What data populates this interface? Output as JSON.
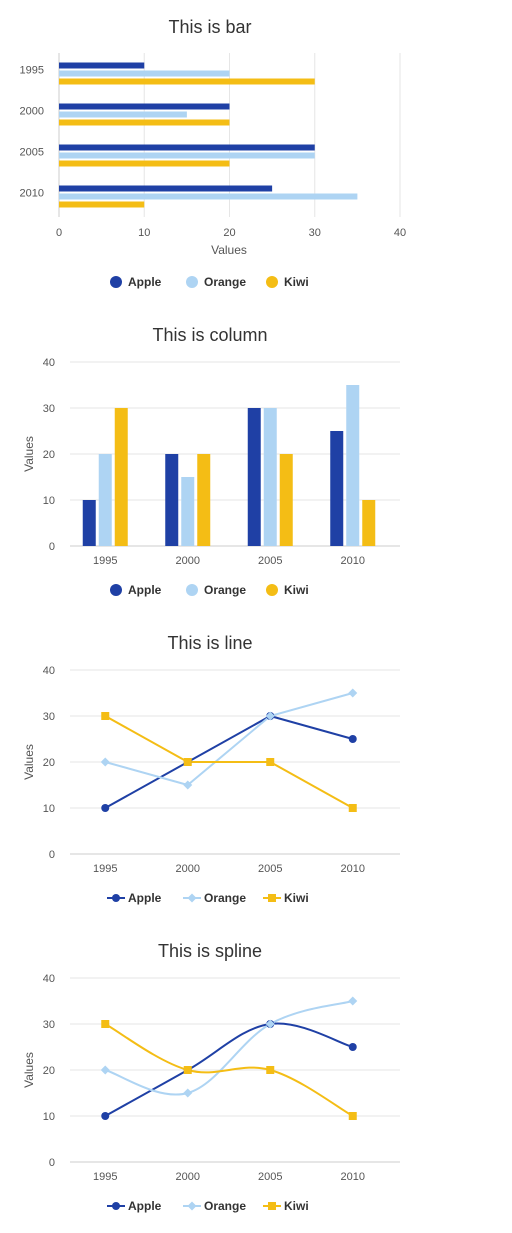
{
  "colors": {
    "Apple": "#1f40a5",
    "Orange": "#aed4f3",
    "Kiwi": "#f4bd15",
    "grid": "#e6e6e6",
    "axis": "#cccccc"
  },
  "chart_data": [
    {
      "type": "bar",
      "title": "This is bar",
      "categories": [
        "1995",
        "2000",
        "2005",
        "2010"
      ],
      "series": [
        {
          "name": "Apple",
          "values": [
            10,
            20,
            30,
            25
          ]
        },
        {
          "name": "Orange",
          "values": [
            20,
            15,
            30,
            35
          ]
        },
        {
          "name": "Kiwi",
          "values": [
            30,
            20,
            20,
            10
          ]
        }
      ],
      "xlabel": "Values",
      "ylabel": "",
      "xlim": [
        0,
        40
      ],
      "ticks": [
        "0",
        "10",
        "20",
        "30",
        "40"
      ],
      "grid": true,
      "legend": "bottom"
    },
    {
      "type": "column",
      "title": "This is column",
      "categories": [
        "1995",
        "2000",
        "2005",
        "2010"
      ],
      "series": [
        {
          "name": "Apple",
          "values": [
            10,
            20,
            30,
            25
          ]
        },
        {
          "name": "Orange",
          "values": [
            20,
            15,
            30,
            35
          ]
        },
        {
          "name": "Kiwi",
          "values": [
            30,
            20,
            20,
            10
          ]
        }
      ],
      "xlabel": "",
      "ylabel": "Values",
      "ylim": [
        0,
        40
      ],
      "ticks": [
        "0",
        "10",
        "20",
        "30",
        "40"
      ],
      "grid": true,
      "legend": "bottom"
    },
    {
      "type": "line",
      "title": "This is line",
      "categories": [
        "1995",
        "2000",
        "2005",
        "2010"
      ],
      "series": [
        {
          "name": "Apple",
          "values": [
            10,
            20,
            30,
            25
          ],
          "marker": "circle"
        },
        {
          "name": "Orange",
          "values": [
            20,
            15,
            30,
            35
          ],
          "marker": "diamond"
        },
        {
          "name": "Kiwi",
          "values": [
            30,
            20,
            20,
            10
          ],
          "marker": "square"
        }
      ],
      "xlabel": "",
      "ylabel": "Values",
      "ylim": [
        0,
        40
      ],
      "ticks": [
        "0",
        "10",
        "20",
        "30",
        "40"
      ],
      "grid": true,
      "legend": "bottom"
    },
    {
      "type": "spline",
      "title": "This is spline",
      "categories": [
        "1995",
        "2000",
        "2005",
        "2010"
      ],
      "series": [
        {
          "name": "Apple",
          "values": [
            10,
            20,
            30,
            25
          ],
          "marker": "circle"
        },
        {
          "name": "Orange",
          "values": [
            20,
            15,
            30,
            35
          ],
          "marker": "diamond"
        },
        {
          "name": "Kiwi",
          "values": [
            30,
            20,
            20,
            10
          ],
          "marker": "square"
        }
      ],
      "xlabel": "",
      "ylabel": "Values",
      "ylim": [
        0,
        40
      ],
      "ticks": [
        "0",
        "10",
        "20",
        "30",
        "40"
      ],
      "grid": true,
      "legend": "bottom"
    }
  ]
}
